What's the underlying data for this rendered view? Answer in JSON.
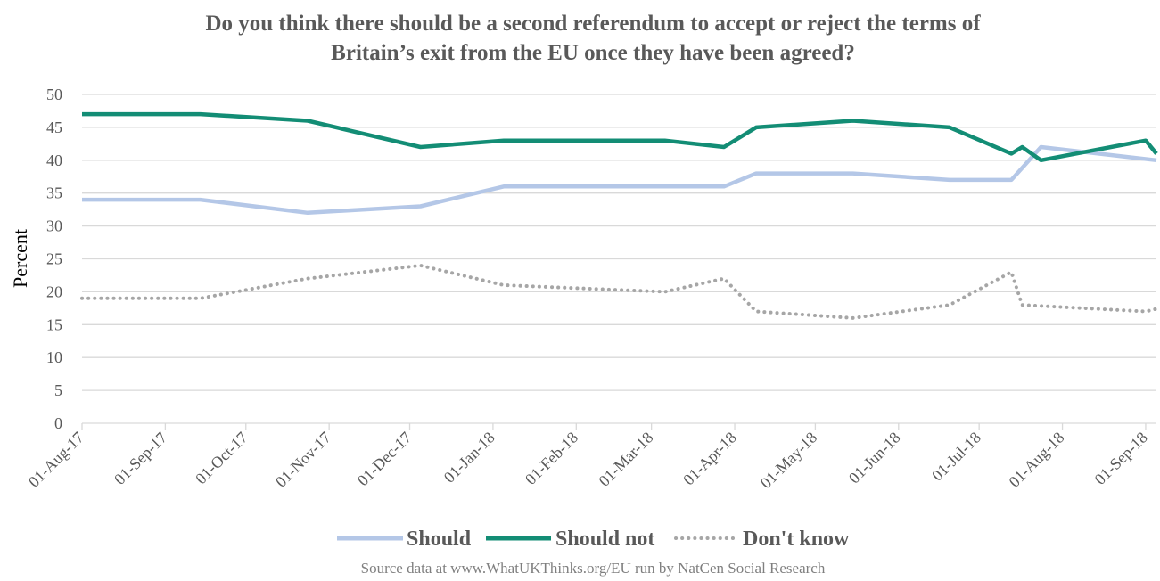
{
  "chart_data": {
    "type": "line",
    "title_lines": [
      "Do you think there should be a second referendum to accept or reject the terms of",
      "Britain’s exit from the EU once they have been agreed?"
    ],
    "ylabel": "Percent",
    "xlabel": "",
    "ylim": [
      0,
      50
    ],
    "y_ticks": [
      "0",
      "5",
      "10",
      "15",
      "20",
      "25",
      "30",
      "35",
      "40",
      "45",
      "50"
    ],
    "xlim": [
      "2017-08-01",
      "2018-09-05"
    ],
    "x_ticks": [
      {
        "date": "2017-08-01",
        "label": "01-Aug-17"
      },
      {
        "date": "2017-09-01",
        "label": "01-Sep-17"
      },
      {
        "date": "2017-10-01",
        "label": "01-Oct-17"
      },
      {
        "date": "2017-11-01",
        "label": "01-Nov-17"
      },
      {
        "date": "2017-12-01",
        "label": "01-Dec-17"
      },
      {
        "date": "2018-01-01",
        "label": "01-Jan-18"
      },
      {
        "date": "2018-02-01",
        "label": "01-Feb-18"
      },
      {
        "date": "2018-03-01",
        "label": "01-Mar-18"
      },
      {
        "date": "2018-04-01",
        "label": "01-Apr-18"
      },
      {
        "date": "2018-05-01",
        "label": "01-May-18"
      },
      {
        "date": "2018-06-01",
        "label": "01-Jun-18"
      },
      {
        "date": "2018-07-01",
        "label": "01-Jul-18"
      },
      {
        "date": "2018-08-01",
        "label": "01-Aug-18"
      },
      {
        "date": "2018-09-01",
        "label": "01-Sep-18"
      }
    ],
    "grid": "horizontal",
    "legend_position": "bottom",
    "series": [
      {
        "name": "Should",
        "color": "#b4c7e7",
        "style": "solid",
        "points": [
          {
            "x": "2017-08-01",
            "y": 34
          },
          {
            "x": "2017-09-14",
            "y": 34
          },
          {
            "x": "2017-10-24",
            "y": 32
          },
          {
            "x": "2017-12-05",
            "y": 33
          },
          {
            "x": "2018-01-05",
            "y": 36
          },
          {
            "x": "2018-03-06",
            "y": 36
          },
          {
            "x": "2018-03-28",
            "y": 36
          },
          {
            "x": "2018-04-09",
            "y": 38
          },
          {
            "x": "2018-05-15",
            "y": 38
          },
          {
            "x": "2018-06-20",
            "y": 37
          },
          {
            "x": "2018-07-13",
            "y": 37
          },
          {
            "x": "2018-07-24",
            "y": 42
          },
          {
            "x": "2018-09-05",
            "y": 40
          }
        ]
      },
      {
        "name": "Should not",
        "color": "#138d75",
        "style": "solid",
        "points": [
          {
            "x": "2017-08-01",
            "y": 47
          },
          {
            "x": "2017-09-14",
            "y": 47
          },
          {
            "x": "2017-10-24",
            "y": 46
          },
          {
            "x": "2017-12-05",
            "y": 42
          },
          {
            "x": "2018-01-05",
            "y": 43
          },
          {
            "x": "2018-03-06",
            "y": 43
          },
          {
            "x": "2018-03-28",
            "y": 42
          },
          {
            "x": "2018-04-09",
            "y": 45
          },
          {
            "x": "2018-05-15",
            "y": 46
          },
          {
            "x": "2018-06-20",
            "y": 45
          },
          {
            "x": "2018-07-13",
            "y": 41
          },
          {
            "x": "2018-07-17",
            "y": 42
          },
          {
            "x": "2018-07-24",
            "y": 40
          },
          {
            "x": "2018-09-01",
            "y": 43
          },
          {
            "x": "2018-09-05",
            "y": 41
          }
        ]
      },
      {
        "name": "Don't know",
        "color": "#a6a6a6",
        "style": "dotted",
        "points": [
          {
            "x": "2017-08-01",
            "y": 19
          },
          {
            "x": "2017-09-14",
            "y": 19
          },
          {
            "x": "2017-10-24",
            "y": 22
          },
          {
            "x": "2017-12-05",
            "y": 24
          },
          {
            "x": "2018-01-05",
            "y": 21
          },
          {
            "x": "2018-03-06",
            "y": 20
          },
          {
            "x": "2018-03-28",
            "y": 22
          },
          {
            "x": "2018-04-09",
            "y": 17
          },
          {
            "x": "2018-05-15",
            "y": 16
          },
          {
            "x": "2018-06-20",
            "y": 18
          },
          {
            "x": "2018-07-13",
            "y": 23
          },
          {
            "x": "2018-07-17",
            "y": 18
          },
          {
            "x": "2018-09-01",
            "y": 17
          },
          {
            "x": "2018-09-05",
            "y": 17.4
          }
        ]
      }
    ]
  },
  "source": "Source data at www.WhatUKThinks.org/EU run by NatCen Social Research"
}
